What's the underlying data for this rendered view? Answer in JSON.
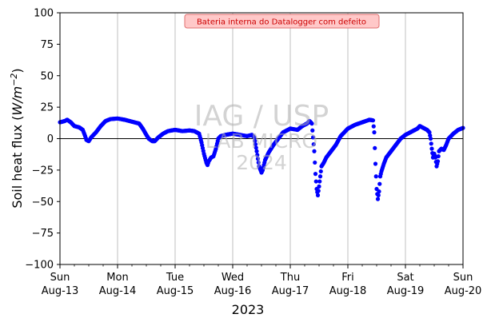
{
  "chart_data": {
    "type": "scatter",
    "ylabel": "Soil heat flux (W/m⁻²)",
    "ylabel_parts": {
      "prefix": "Soil heat flux (",
      "unit": "W/m",
      "exponent": "−2",
      "suffix": ")"
    },
    "xlabel": "2023",
    "ylim": [
      -100,
      100
    ],
    "yticks": [
      -100,
      -75,
      -50,
      -25,
      0,
      25,
      50,
      75,
      100
    ],
    "xlim": [
      "2023-08-13",
      "2023-08-20"
    ],
    "xticks": [
      {
        "day": "Sun",
        "date": "Aug-13"
      },
      {
        "day": "Mon",
        "date": "Aug-14"
      },
      {
        "day": "Tue",
        "date": "Aug-15"
      },
      {
        "day": "Wed",
        "date": "Aug-16"
      },
      {
        "day": "Thu",
        "date": "Aug-17"
      },
      {
        "day": "Fri",
        "date": "Aug-18"
      },
      {
        "day": "Sat",
        "date": "Aug-19"
      },
      {
        "day": "Sun",
        "date": "Aug-20"
      }
    ],
    "grid": "vertical",
    "zero_line": true,
    "series": [
      {
        "color": "#0000ff",
        "points": [
          [
            "2023-08-13 00:00",
            13
          ],
          [
            "2023-08-13 02:00",
            14
          ],
          [
            "2023-08-13 03:00",
            15
          ],
          [
            "2023-08-13 04:30",
            13
          ],
          [
            "2023-08-13 06:00",
            10
          ],
          [
            "2023-08-13 08:00",
            9
          ],
          [
            "2023-08-13 09:30",
            7
          ],
          [
            "2023-08-13 10:30",
            2
          ],
          [
            "2023-08-13 11:00",
            -1
          ],
          [
            "2023-08-13 12:00",
            -2
          ],
          [
            "2023-08-13 13:00",
            1
          ],
          [
            "2023-08-13 15:00",
            5
          ],
          [
            "2023-08-13 17:00",
            10
          ],
          [
            "2023-08-13 19:00",
            14
          ],
          [
            "2023-08-13 21:00",
            15.5
          ],
          [
            "2023-08-14 00:00",
            16
          ],
          [
            "2023-08-14 03:00",
            15
          ],
          [
            "2023-08-14 06:00",
            13.5
          ],
          [
            "2023-08-14 09:00",
            12
          ],
          [
            "2023-08-14 10:30",
            8
          ],
          [
            "2023-08-14 12:00",
            3
          ],
          [
            "2023-08-14 13:00",
            0
          ],
          [
            "2023-08-14 14:30",
            -2
          ],
          [
            "2023-08-14 15:30",
            -2
          ],
          [
            "2023-08-14 17:00",
            1
          ],
          [
            "2023-08-14 19:00",
            4
          ],
          [
            "2023-08-14 21:00",
            6
          ],
          [
            "2023-08-15 00:00",
            7
          ],
          [
            "2023-08-15 03:00",
            6
          ],
          [
            "2023-08-15 06:00",
            6.5
          ],
          [
            "2023-08-15 08:00",
            6
          ],
          [
            "2023-08-15 10:00",
            4
          ],
          [
            "2023-08-15 11:00",
            -3
          ],
          [
            "2023-08-15 12:00",
            -12
          ],
          [
            "2023-08-15 13:00",
            -19
          ],
          [
            "2023-08-15 13:30",
            -21
          ],
          [
            "2023-08-15 14:00",
            -18
          ],
          [
            "2023-08-15 15:00",
            -15
          ],
          [
            "2023-08-15 16:00",
            -14
          ],
          [
            "2023-08-15 17:00",
            -8
          ],
          [
            "2023-08-15 18:00",
            0
          ],
          [
            "2023-08-15 19:00",
            2
          ],
          [
            "2023-08-15 21:00",
            3
          ],
          [
            "2023-08-16 00:00",
            4
          ],
          [
            "2023-08-16 03:00",
            3
          ],
          [
            "2023-08-16 06:00",
            2
          ],
          [
            "2023-08-16 08:00",
            3
          ],
          [
            "2023-08-16 09:00",
            1
          ],
          [
            "2023-08-16 10:00",
            -10
          ],
          [
            "2023-08-16 11:00",
            -22
          ],
          [
            "2023-08-16 12:00",
            -27
          ],
          [
            "2023-08-16 12:30",
            -25
          ],
          [
            "2023-08-16 13:30",
            -17
          ],
          [
            "2023-08-16 15:00",
            -11
          ],
          [
            "2023-08-16 17:00",
            -5
          ],
          [
            "2023-08-16 19:00",
            0
          ],
          [
            "2023-08-16 21:00",
            5
          ],
          [
            "2023-08-17 00:00",
            8
          ],
          [
            "2023-08-17 03:00",
            7
          ],
          [
            "2023-08-17 05:00",
            10
          ],
          [
            "2023-08-17 07:00",
            12
          ],
          [
            "2023-08-17 08:00",
            14
          ],
          [
            "2023-08-17 09:00",
            12
          ],
          [
            "2023-08-17 10:00",
            -10
          ],
          [
            "2023-08-17 10:30",
            -28
          ],
          [
            "2023-08-17 11:00",
            -40
          ],
          [
            "2023-08-17 11:30",
            -45
          ],
          [
            "2023-08-17 12:00",
            -38
          ],
          [
            "2023-08-17 12:30",
            -30
          ],
          [
            "2023-08-17 13:00",
            -22
          ],
          [
            "2023-08-17 14:00",
            -19
          ],
          [
            "2023-08-17 15:00",
            -15
          ],
          [
            "2023-08-17 17:00",
            -10
          ],
          [
            "2023-08-17 19:00",
            -5
          ],
          [
            "2023-08-17 21:00",
            2
          ],
          [
            "2023-08-18 00:00",
            8
          ],
          [
            "2023-08-18 03:00",
            11
          ],
          [
            "2023-08-18 06:00",
            13
          ],
          [
            "2023-08-18 09:00",
            15
          ],
          [
            "2023-08-18 10:30",
            14.5
          ],
          [
            "2023-08-18 11:00",
            5
          ],
          [
            "2023-08-18 11:30",
            -20
          ],
          [
            "2023-08-18 12:00",
            -40
          ],
          [
            "2023-08-18 12:30",
            -48
          ],
          [
            "2023-08-18 13:00",
            -42
          ],
          [
            "2023-08-18 13:30",
            -30
          ],
          [
            "2023-08-18 14:00",
            -26
          ],
          [
            "2023-08-18 15:00",
            -20
          ],
          [
            "2023-08-18 16:00",
            -15
          ],
          [
            "2023-08-18 18:00",
            -10
          ],
          [
            "2023-08-18 20:00",
            -5
          ],
          [
            "2023-08-18 22:00",
            0
          ],
          [
            "2023-08-19 00:00",
            3
          ],
          [
            "2023-08-19 03:00",
            6
          ],
          [
            "2023-08-19 05:00",
            8
          ],
          [
            "2023-08-19 06:00",
            10
          ],
          [
            "2023-08-19 07:00",
            9
          ],
          [
            "2023-08-19 09:00",
            7
          ],
          [
            "2023-08-19 10:00",
            5
          ],
          [
            "2023-08-19 10:30",
            0
          ],
          [
            "2023-08-19 11:00",
            -8
          ],
          [
            "2023-08-19 11:30",
            -15
          ],
          [
            "2023-08-19 12:00",
            -12
          ],
          [
            "2023-08-19 12:30",
            -15
          ],
          [
            "2023-08-19 13:00",
            -22
          ],
          [
            "2023-08-19 13:30",
            -18
          ],
          [
            "2023-08-19 14:00",
            -10
          ],
          [
            "2023-08-19 15:00",
            -8
          ],
          [
            "2023-08-19 16:00",
            -9
          ],
          [
            "2023-08-19 17:00",
            -5
          ],
          [
            "2023-08-19 18:00",
            0
          ],
          [
            "2023-08-19 20:00",
            4
          ],
          [
            "2023-08-19 22:00",
            7
          ],
          [
            "2023-08-20 00:00",
            8.5
          ]
        ]
      }
    ],
    "annotation": "Bateria interna do Datalogger com defeito",
    "watermark": [
      "IAG / USP",
      "LAB MICRO",
      "2024"
    ],
    "colors": {
      "series": "#0000ff",
      "annotation_box_fill": "#ffc8c8",
      "annotation_box_border": "#e07070",
      "annotation_text": "#cc0000",
      "grid": "#b0b0b0",
      "watermark": "#b0b0b0"
    }
  }
}
